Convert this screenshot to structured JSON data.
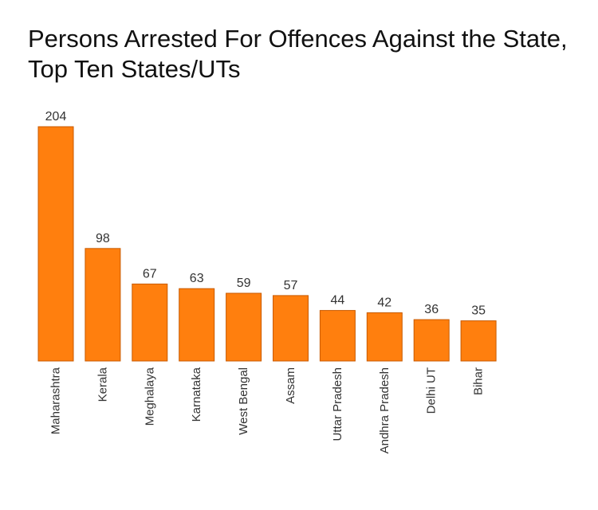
{
  "colors": {
    "bar": "#ff7f0e"
  },
  "chart_data": {
    "type": "bar",
    "title": "Persons Arrested For Offences Against the State, Top Ten States/UTs",
    "xlabel": "",
    "ylabel": "",
    "ylim": [
      0,
      204
    ],
    "grid": false,
    "categories": [
      "Maharashtra",
      "Kerala",
      "Meghalaya",
      "Karnataka",
      "West Bengal",
      "Assam",
      "Uttar Pradesh",
      "Andhra Pradesh",
      "Delhi UT",
      "Bihar"
    ],
    "values": [
      204,
      98,
      67,
      63,
      59,
      57,
      44,
      42,
      36,
      35
    ]
  }
}
